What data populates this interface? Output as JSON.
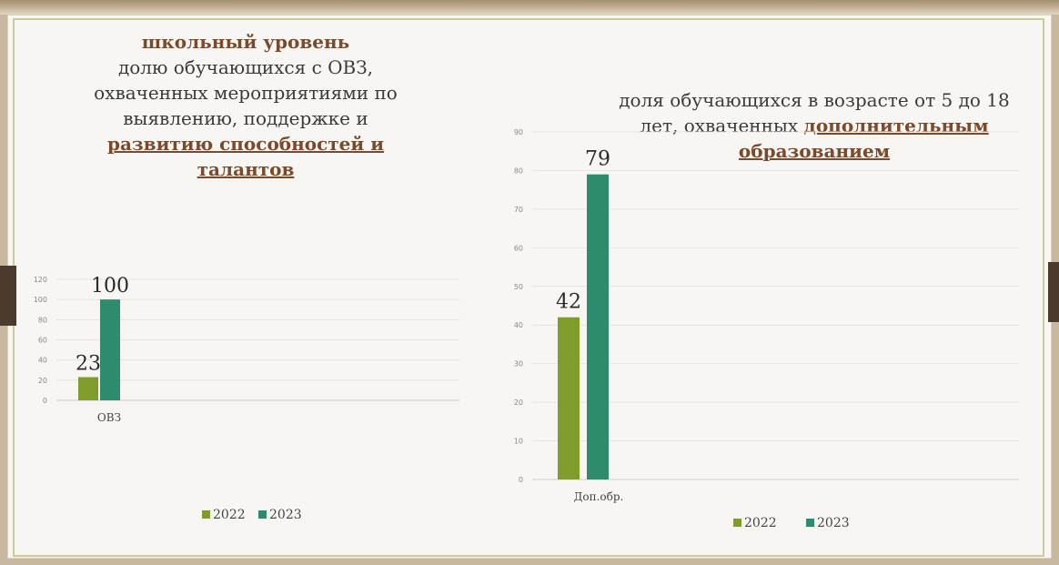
{
  "charts_titles": {
    "left": {
      "line1": "школьный уровень",
      "line2": "долю обучающихся с ОВЗ,",
      "line3": "охваченных мероприятиями по",
      "line4": "выявлению, поддержке и",
      "line5": "развитию способностей и",
      "line6": "талантов"
    },
    "right": {
      "line1": "доля обучающихся в возрасте от 5 до 18",
      "line2_plain": "лет, охваченных ",
      "line2_hl": "дополнительным",
      "line3": "образованием"
    }
  },
  "colors": {
    "series_2022": "#7f9c2c",
    "series_2023": "#2e8b6e"
  },
  "chart_data": [
    {
      "type": "bar",
      "categories": [
        "ОВЗ"
      ],
      "series": [
        {
          "name": "2022",
          "values": [
            23
          ]
        },
        {
          "name": "2023",
          "values": [
            100
          ]
        }
      ],
      "ylim": [
        0,
        120
      ],
      "yticks": [
        "0",
        "20",
        "40",
        "60",
        "80",
        "100",
        "120"
      ],
      "data_labels": [
        "23",
        "100"
      ],
      "legend_placement": "bottom",
      "grid": true
    },
    {
      "type": "bar",
      "categories": [
        "Доп.обр."
      ],
      "series": [
        {
          "name": "2022",
          "values": [
            42
          ]
        },
        {
          "name": "2023",
          "values": [
            79
          ]
        }
      ],
      "ylim": [
        0,
        90
      ],
      "yticks": [
        "0",
        "10",
        "20",
        "30",
        "40",
        "50",
        "60",
        "70",
        "80",
        "90"
      ],
      "data_labels": [
        "42",
        "79"
      ],
      "legend_placement": "bottom",
      "grid": true
    }
  ]
}
